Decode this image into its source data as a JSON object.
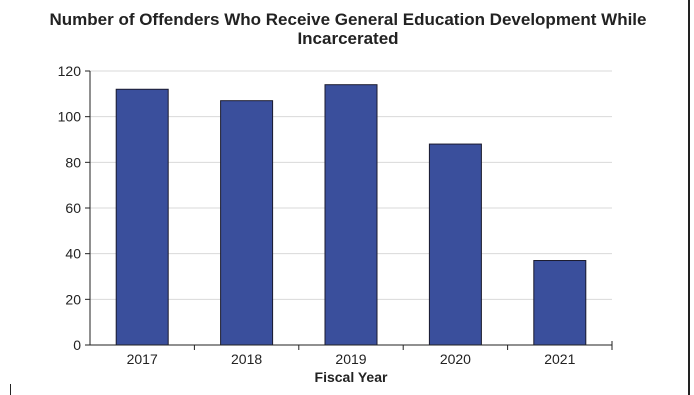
{
  "chart_data": {
    "type": "bar",
    "title": "Number of Offenders Who Receive General Education Development While Incarcerated",
    "xlabel": "Fiscal Year",
    "ylabel": "",
    "categories": [
      "2017",
      "2018",
      "2019",
      "2020",
      "2021"
    ],
    "values": [
      112,
      107,
      114,
      88,
      37
    ],
    "ylim": [
      0,
      120
    ],
    "yticks": [
      "0",
      "20",
      "40",
      "60",
      "80",
      "100",
      "120"
    ],
    "grid": true,
    "legend": "none",
    "colors": {
      "bar": "#3a4f9c",
      "bar_edge": "#1a1a2e",
      "grid": "#d9d9d9",
      "axis": "#222222"
    }
  }
}
